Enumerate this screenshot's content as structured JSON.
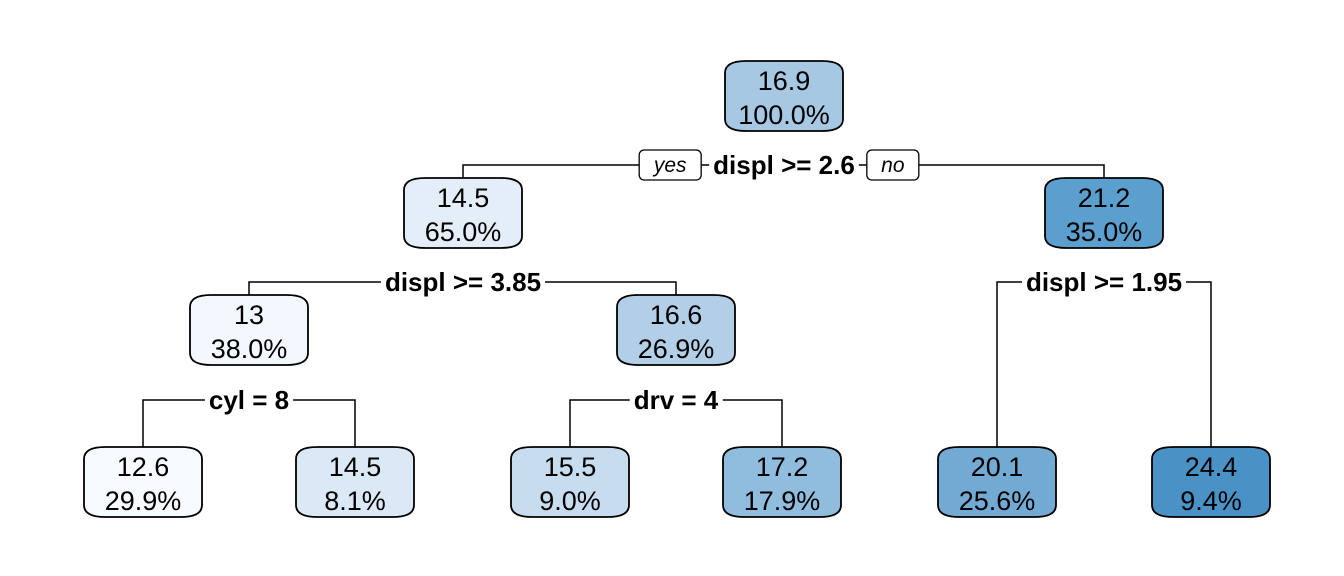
{
  "tree": {
    "branch_labels": {
      "yes": "yes",
      "no": "no"
    },
    "nodes": [
      {
        "id": "n1",
        "value": "16.9",
        "percent": "100.0%",
        "color": "#a7c8e3",
        "split": "displ >= 2.6",
        "left": "n2",
        "right": "n3"
      },
      {
        "id": "n2",
        "value": "14.5",
        "percent": "65.0%",
        "color": "#e4eef8",
        "split": "displ >= 3.85",
        "left": "n4",
        "right": "n5"
      },
      {
        "id": "n3",
        "value": "21.2",
        "percent": "35.0%",
        "color": "#5a9fce",
        "split": "displ >= 1.95",
        "left": "n10",
        "right": "n11"
      },
      {
        "id": "n4",
        "value": "13",
        "percent": "38.0%",
        "color": "#f2f8fd",
        "split": "cyl = 8",
        "left": "n6",
        "right": "n7"
      },
      {
        "id": "n5",
        "value": "16.6",
        "percent": "26.9%",
        "color": "#b2cfe7",
        "split": "drv = 4",
        "left": "n8",
        "right": "n9"
      },
      {
        "id": "n6",
        "value": "12.6",
        "percent": "29.9%",
        "color": "#f7fbff"
      },
      {
        "id": "n7",
        "value": "14.5",
        "percent": "8.1%",
        "color": "#dbe8f5"
      },
      {
        "id": "n8",
        "value": "15.5",
        "percent": "9.0%",
        "color": "#c7dcef"
      },
      {
        "id": "n9",
        "value": "17.2",
        "percent": "17.9%",
        "color": "#90bcdd"
      },
      {
        "id": "n10",
        "value": "20.1",
        "percent": "25.6%",
        "color": "#72aad4"
      },
      {
        "id": "n11",
        "value": "24.4",
        "percent": "9.4%",
        "color": "#4a92c6"
      }
    ]
  }
}
